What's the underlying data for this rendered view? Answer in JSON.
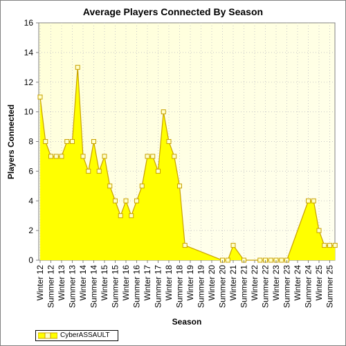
{
  "chart_data": {
    "type": "area",
    "title": "Average Players Connected By Season",
    "xlabel": "Season",
    "ylabel": "Players Connected",
    "ylim": [
      0,
      16
    ],
    "yticks": [
      0,
      2,
      4,
      6,
      8,
      10,
      12,
      14,
      16
    ],
    "grid": true,
    "legend": "bottom-left",
    "categories": [
      "Winter 12",
      "Summer 12",
      "Winter 13",
      "Summer 13",
      "Winter 14",
      "Summer 14",
      "Winter 15",
      "Summer 15",
      "Winter 16",
      "Summer 16",
      "Winter 17",
      "Summer 17",
      "Winter 18",
      "Summer 18",
      "Winter 19",
      "Summer 19",
      "Winter 20",
      "Summer 20",
      "Winter 21",
      "Summer 21",
      "Winter 22",
      "Summer 22",
      "Winter 23",
      "Summer 23",
      "Winter 24",
      "Summer 24",
      "Winter 25",
      "Summer 25"
    ],
    "x": [
      0,
      0.5,
      1,
      1.5,
      2,
      2.5,
      3,
      3.5,
      4,
      4.5,
      5,
      5.5,
      6,
      6.5,
      7,
      7.5,
      8,
      8.5,
      9,
      9.5,
      10,
      10.5,
      11,
      11.5,
      12,
      12.5,
      13,
      13.5,
      14,
      14.5,
      15,
      15.5,
      16,
      16.5,
      17,
      17.5,
      18,
      18.5,
      19,
      19.5,
      20,
      20.5,
      21,
      21.5,
      22,
      22.5,
      23,
      23.5,
      24,
      24.5,
      25,
      25.5,
      26,
      26.5,
      27,
      27.5
    ],
    "series": [
      {
        "name": "CyberASSAULT",
        "color": "#ffff00",
        "line_color": "#c8a000",
        "values": [
          11,
          8,
          7,
          7,
          7,
          8,
          8,
          13,
          7,
          6,
          8,
          6,
          7,
          5,
          4,
          3,
          4,
          3,
          4,
          5,
          7,
          7,
          6,
          10,
          8,
          7,
          5,
          1,
          null,
          null,
          null,
          null,
          null,
          null,
          0,
          0,
          1,
          null,
          0,
          null,
          null,
          0,
          0,
          0,
          0,
          0,
          0,
          null,
          null,
          null,
          4,
          4,
          2,
          1,
          1,
          1
        ]
      }
    ]
  }
}
